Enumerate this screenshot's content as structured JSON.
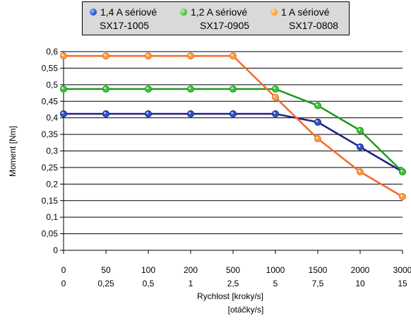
{
  "chart_data": {
    "type": "line",
    "categories": [
      {
        "primary": "0",
        "secondary": "0"
      },
      {
        "primary": "50",
        "secondary": "0,25"
      },
      {
        "primary": "100",
        "secondary": "0,5"
      },
      {
        "primary": "200",
        "secondary": "1"
      },
      {
        "primary": "500",
        "secondary": "2,5"
      },
      {
        "primary": "1000",
        "secondary": "5"
      },
      {
        "primary": "1500",
        "secondary": "7,5"
      },
      {
        "primary": "2000",
        "secondary": "10"
      },
      {
        "primary": "3000",
        "secondary": "15"
      }
    ],
    "series": [
      {
        "name": "1,4 A sériové",
        "subname": "SX17-1005",
        "color": "#1f1f8a",
        "marker": "#2d55c8",
        "values": [
          0.412,
          0.412,
          0.412,
          0.412,
          0.412,
          0.412,
          0.387,
          0.312,
          0.237
        ]
      },
      {
        "name": "1,2 A sériové",
        "subname": "SX17-0905",
        "color": "#1e9b1e",
        "marker": "#3cc43c",
        "values": [
          0.487,
          0.487,
          0.487,
          0.487,
          0.487,
          0.487,
          0.437,
          0.362,
          0.237
        ]
      },
      {
        "name": "1 A sériové",
        "subname": "SX17-0808",
        "color": "#f26a2a",
        "marker": "#f5a23a",
        "values": [
          0.587,
          0.587,
          0.587,
          0.587,
          0.587,
          0.462,
          0.337,
          0.237,
          0.162
        ]
      }
    ],
    "ylabel": "Moment [Nm]",
    "xlabel": "Rychlost [kroky/s]",
    "xlabel2": "[otáčky/s]",
    "ylim": [
      0,
      0.6
    ],
    "yticks": [
      0,
      0.05,
      0.1,
      0.15,
      0.2,
      0.25,
      0.3,
      0.35,
      0.4,
      0.45,
      0.5,
      0.55,
      0.6
    ],
    "ytick_labels": [
      "0",
      "0,05",
      "0,1",
      "0,15",
      "0,2",
      "0,25",
      "0,3",
      "0,35",
      "0,4",
      "0,45",
      "0,5",
      "0,55",
      "0,6"
    ],
    "grid": true,
    "legend_position": "top"
  }
}
